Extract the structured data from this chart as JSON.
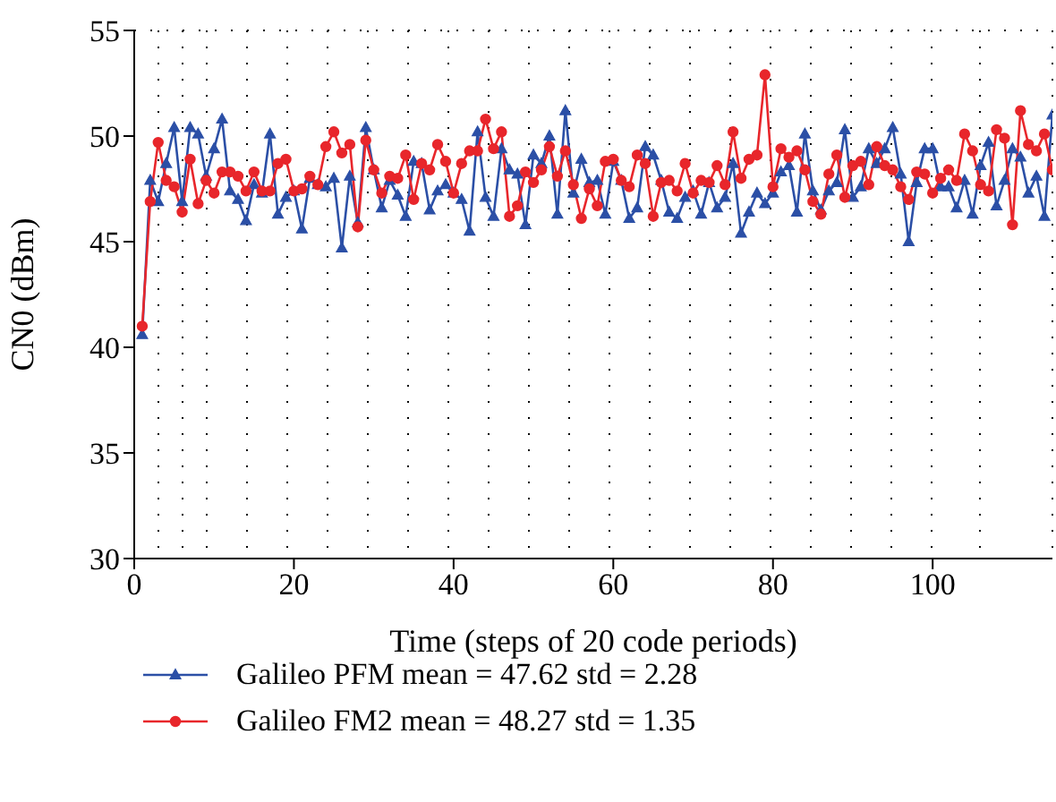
{
  "chart_data": {
    "type": "line",
    "xlabel": "Time (steps of 20 code periods)",
    "ylabel": "CN0 (dBm)",
    "x": [
      1,
      2,
      3,
      4,
      5,
      6,
      7,
      8,
      9,
      10,
      11,
      12,
      13,
      14,
      15,
      16,
      17,
      18,
      19,
      20,
      21,
      22,
      23,
      24,
      25,
      26,
      27,
      28,
      29,
      30,
      31,
      32,
      33,
      34,
      35,
      36,
      37,
      38,
      39,
      40,
      41,
      42,
      43,
      44,
      45,
      46,
      47,
      48,
      49,
      50,
      51,
      52,
      53,
      54,
      55,
      56,
      57,
      58,
      59,
      60,
      61,
      62,
      63,
      64,
      65,
      66,
      67,
      68,
      69,
      70,
      71,
      72,
      73,
      74,
      75,
      76,
      77,
      78,
      79,
      80,
      81,
      82,
      83,
      84,
      85,
      86,
      87,
      88,
      89,
      90,
      91,
      92,
      93,
      94,
      95,
      96,
      97,
      98,
      99,
      100,
      101,
      102,
      103,
      104,
      105,
      106,
      107,
      108,
      109,
      110,
      111,
      112,
      113,
      114,
      115
    ],
    "series": [
      {
        "name": "Galileo PFM mean = 47.62 std = 2.28",
        "color": "#2b4fa6",
        "marker": "triangle",
        "values": [
          40.6,
          47.9,
          46.9,
          48.7,
          50.4,
          46.9,
          50.4,
          50.1,
          48.1,
          49.4,
          50.8,
          47.4,
          47.0,
          46.0,
          47.7,
          47.3,
          50.1,
          46.3,
          47.1,
          47.4,
          45.6,
          48.0,
          47.7,
          47.6,
          48.0,
          44.7,
          48.1,
          45.9,
          50.4,
          48.4,
          46.6,
          47.9,
          47.2,
          46.2,
          48.8,
          48.7,
          46.5,
          47.4,
          47.7,
          47.3,
          47.0,
          45.5,
          50.2,
          47.1,
          46.2,
          49.4,
          48.4,
          48.2,
          45.8,
          49.1,
          48.7,
          50.0,
          46.3,
          51.2,
          47.3,
          48.9,
          47.8,
          47.9,
          46.3,
          48.8,
          47.9,
          46.1,
          46.6,
          49.5,
          49.1,
          47.9,
          46.4,
          46.1,
          47.1,
          47.4,
          46.3,
          47.8,
          46.6,
          47.1,
          48.7,
          45.4,
          46.4,
          47.3,
          46.8,
          47.3,
          48.3,
          48.6,
          46.4,
          50.1,
          47.4,
          46.5,
          47.4,
          47.8,
          50.3,
          47.1,
          47.6,
          49.4,
          48.7,
          49.4,
          50.4,
          48.2,
          45.0,
          47.8,
          49.4,
          49.4,
          47.6,
          47.6,
          46.6,
          47.9,
          46.3,
          48.6,
          49.7,
          46.7,
          47.9,
          49.4,
          49.0,
          47.3,
          48.1,
          46.2,
          51.0
        ]
      },
      {
        "name": "Galileo FM2 mean = 48.27 std = 1.35",
        "color": "#e8262b",
        "marker": "circle",
        "values": [
          41.0,
          46.9,
          49.7,
          47.9,
          47.6,
          46.4,
          48.9,
          46.8,
          47.9,
          47.3,
          48.3,
          48.3,
          48.1,
          47.4,
          48.3,
          47.4,
          47.4,
          48.7,
          48.9,
          47.4,
          47.5,
          48.1,
          47.7,
          49.5,
          50.2,
          49.2,
          49.6,
          45.7,
          49.8,
          48.4,
          47.3,
          48.1,
          48.0,
          49.1,
          47.0,
          48.7,
          48.4,
          49.6,
          48.8,
          47.3,
          48.7,
          49.3,
          49.3,
          50.8,
          49.4,
          50.2,
          46.2,
          46.7,
          48.3,
          47.8,
          48.4,
          49.5,
          48.1,
          49.3,
          47.7,
          46.1,
          47.5,
          46.7,
          48.8,
          48.9,
          47.9,
          47.6,
          49.1,
          48.7,
          46.2,
          47.8,
          47.9,
          47.4,
          48.7,
          47.3,
          47.9,
          47.8,
          48.6,
          47.7,
          50.2,
          48.0,
          48.9,
          49.1,
          52.9,
          47.6,
          49.4,
          49.0,
          49.3,
          48.4,
          46.9,
          46.3,
          48.2,
          49.1,
          47.1,
          48.6,
          48.8,
          47.7,
          49.5,
          48.6,
          48.4,
          47.6,
          47.0,
          48.3,
          48.2,
          47.3,
          48.0,
          48.4,
          47.9,
          50.1,
          49.3,
          47.7,
          47.4,
          50.3,
          49.9,
          45.8,
          51.2,
          49.6,
          49.3,
          50.1,
          48.4
        ]
      }
    ],
    "xlim": [
      0,
      115
    ],
    "xticks": [
      0,
      20,
      40,
      60,
      80,
      100
    ],
    "ylim": [
      30,
      55
    ],
    "yticks": [
      30,
      35,
      40,
      45,
      50,
      55
    ],
    "grid": true,
    "legend": "bottom",
    "line_style": "solid"
  }
}
